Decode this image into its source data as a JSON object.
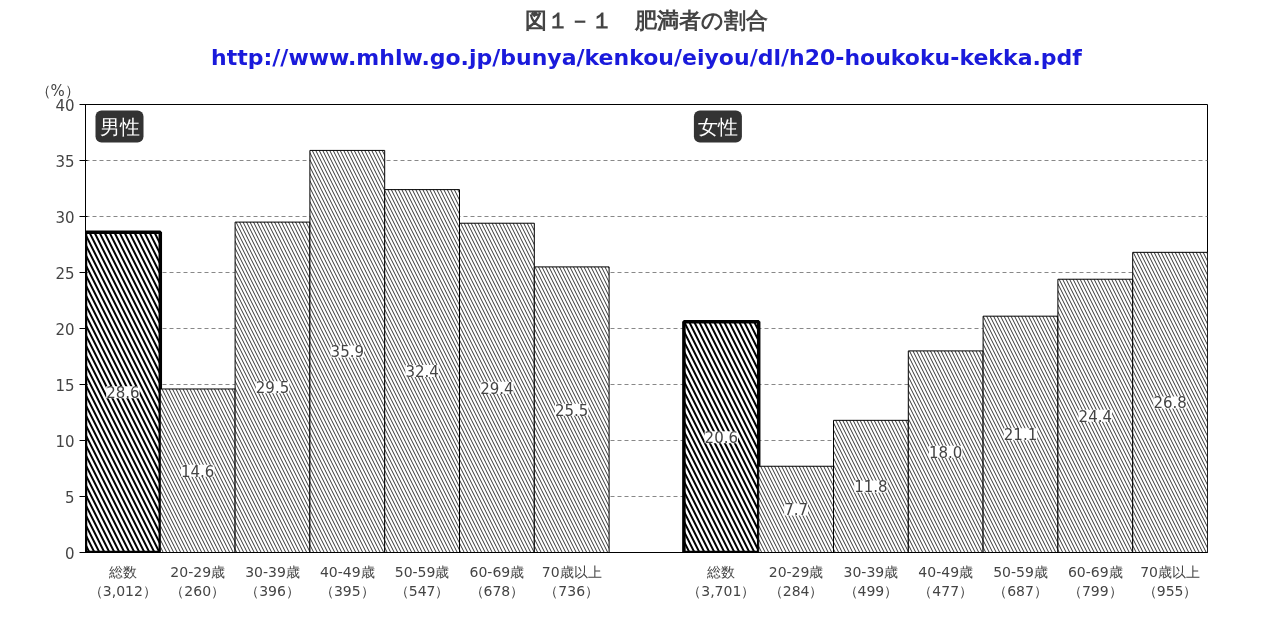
{
  "chart_data": {
    "type": "bar",
    "title": "図１－１　肥満者の割合",
    "ylabel": "（%）",
    "annotations": [
      "http://www.mhlw.go.jp/bunya/kenkou/eiyou/dl/h20-houkoku-kekka.pdf",
      "男性",
      "女性"
    ],
    "categories": [
      "総数（3,012）",
      "20-29歳（260）",
      "30-39歳（396）",
      "40-49歳（395）",
      "50-59歳（547）",
      "60-69歳（678）",
      "70歳以上（736）",
      null,
      "総数（3,701）",
      "20-29歳（284）",
      "30-39歳（499）",
      "40-49歳（477）",
      "50-59歳（687）",
      "60-69歳（799）",
      "70歳以上（955）"
    ],
    "values": [
      28.6,
      14.6,
      29.5,
      35.9,
      32.4,
      29.4,
      25.5,
      null,
      20.6,
      7.7,
      11.8,
      18.0,
      21.1,
      24.4,
      26.8
    ],
    "value_labels": [
      "28.6",
      "14.6",
      "29.5",
      "35.9",
      "32.4",
      "29.4",
      "25.5",
      null,
      "20.6",
      "7.7",
      "11.8",
      "18.0",
      "21.1",
      "24.4",
      "26.8"
    ],
    "color": "#ffffff",
    "ylim": [
      0,
      40
    ],
    "yticks": [
      0,
      5,
      10,
      15,
      20,
      25,
      30,
      35,
      40
    ],
    "grid": "y"
  }
}
